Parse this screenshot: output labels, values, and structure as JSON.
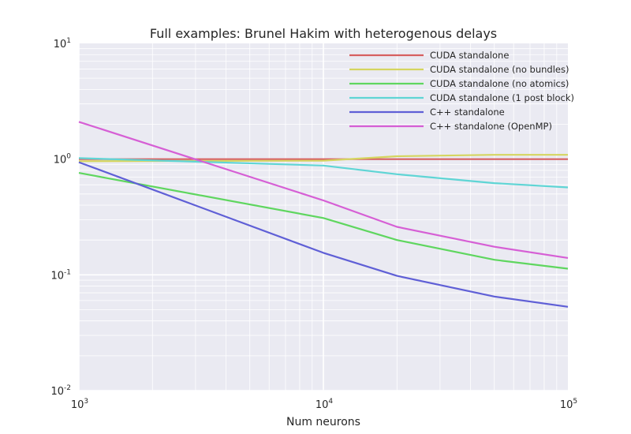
{
  "chart_data": {
    "type": "line",
    "title": "Full examples: Brunel Hakim with heterogenous delays",
    "xlabel": "Num neurons",
    "ylabel": "",
    "xscale": "log",
    "yscale": "log",
    "xlim": [
      1000,
      100000
    ],
    "ylim": [
      0.01,
      10
    ],
    "grid": true,
    "legend_position": "top-right",
    "x_ticks": [
      {
        "base": "10",
        "exp": "3"
      },
      {
        "base": "10",
        "exp": "4"
      },
      {
        "base": "10",
        "exp": "5"
      }
    ],
    "y_ticks": [
      {
        "base": "10",
        "exp": "-2"
      },
      {
        "base": "10",
        "exp": "-1"
      },
      {
        "base": "10",
        "exp": "0"
      },
      {
        "base": "10",
        "exp": "1"
      }
    ],
    "x": [
      1000,
      10000,
      20000,
      50000,
      100000
    ],
    "series": [
      {
        "name": "CUDA standalone",
        "color": "#d65f5f",
        "values": [
          1.0,
          1.0,
          1.0,
          1.0,
          1.0
        ]
      },
      {
        "name": "CUDA standalone (no bundles)",
        "color": "#d5d55f",
        "values": [
          0.96,
          0.97,
          1.06,
          1.09,
          1.09
        ]
      },
      {
        "name": "CUDA standalone (no atomics)",
        "color": "#5fd65f",
        "values": [
          0.76,
          0.31,
          0.2,
          0.135,
          0.113
        ]
      },
      {
        "name": "CUDA standalone (1 post block)",
        "color": "#5fd5d5",
        "values": [
          1.02,
          0.88,
          0.74,
          0.62,
          0.57
        ]
      },
      {
        "name": "C++ standalone",
        "color": "#5f5fd6",
        "values": [
          0.94,
          0.155,
          0.098,
          0.065,
          0.053
        ]
      },
      {
        "name": "C++ standalone (OpenMP)",
        "color": "#d65fd5",
        "values": [
          2.1,
          0.44,
          0.26,
          0.175,
          0.14
        ]
      }
    ]
  }
}
